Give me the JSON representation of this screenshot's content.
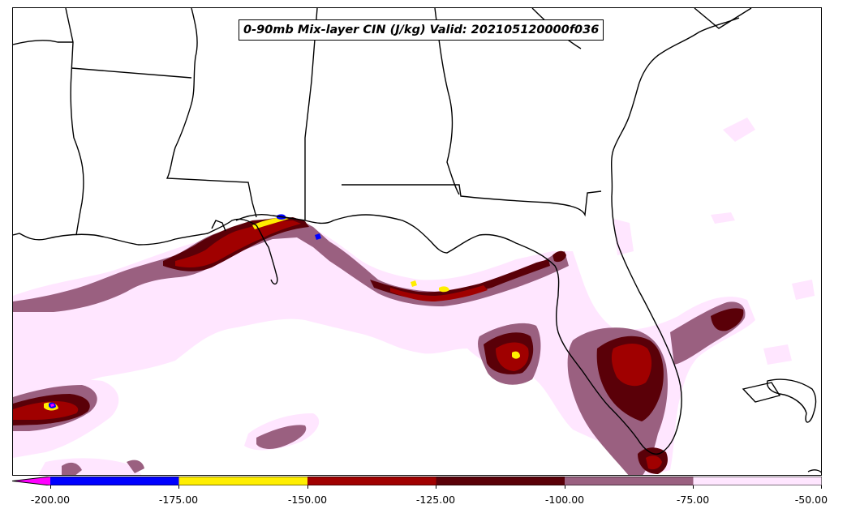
{
  "title": "0-90mb Mix-layer CIN (J/kg) Valid: 202105120000f036",
  "colorbar": {
    "ticks": [
      "-200.00",
      "-175.00",
      "-150.00",
      "-125.00",
      "-100.00",
      "-75.00",
      "-50.00"
    ],
    "colors": [
      "#ff00ff",
      "#0000ff",
      "#ffee00",
      "#a00000",
      "#5a0008",
      "#9a6080",
      "#ffe6ff"
    ]
  },
  "field_colors": {
    "light": "#ffe6ff",
    "mauve": "#9a6080",
    "dark": "#5a0008",
    "red": "#a00000",
    "yellow": "#ffee00",
    "blue": "#0000ff"
  }
}
